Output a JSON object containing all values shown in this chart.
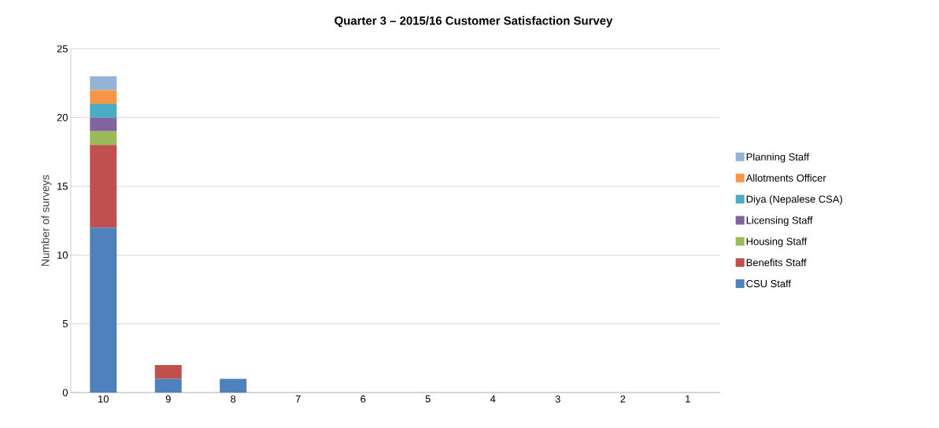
{
  "chart_data": {
    "type": "bar",
    "title": "Quarter 3 – 2015/16 Customer Satisfaction Survey",
    "ylabel": "Number of surveys",
    "categories": [
      "10",
      "9",
      "8",
      "7",
      "6",
      "5",
      "4",
      "3",
      "2",
      "1"
    ],
    "stacked": true,
    "series": [
      {
        "name": "CSU Staff",
        "color": "#4f81bd",
        "values": [
          12,
          1,
          1,
          0,
          0,
          0,
          0,
          0,
          0,
          0
        ]
      },
      {
        "name": "Benefits Staff",
        "color": "#c0504d",
        "values": [
          6,
          1,
          0,
          0,
          0,
          0,
          0,
          0,
          0,
          0
        ]
      },
      {
        "name": "Housing Staff",
        "color": "#9bbb59",
        "values": [
          1,
          0,
          0,
          0,
          0,
          0,
          0,
          0,
          0,
          0
        ]
      },
      {
        "name": "Licensing Staff",
        "color": "#8064a2",
        "values": [
          1,
          0,
          0,
          0,
          0,
          0,
          0,
          0,
          0,
          0
        ]
      },
      {
        "name": "Diya (Nepalese CSA)",
        "color": "#4bacc6",
        "values": [
          1,
          0,
          0,
          0,
          0,
          0,
          0,
          0,
          0,
          0
        ]
      },
      {
        "name": "Allotments Officer",
        "color": "#f79646",
        "values": [
          1,
          0,
          0,
          0,
          0,
          0,
          0,
          0,
          0,
          0
        ]
      },
      {
        "name": "Planning Staff",
        "color": "#95b3d7",
        "values": [
          1,
          0,
          0,
          0,
          0,
          0,
          0,
          0,
          0,
          0
        ]
      }
    ],
    "ylim": [
      0,
      25
    ],
    "yticks": [
      0,
      5,
      10,
      15,
      20,
      25
    ],
    "grid": "y",
    "legend": "right"
  }
}
